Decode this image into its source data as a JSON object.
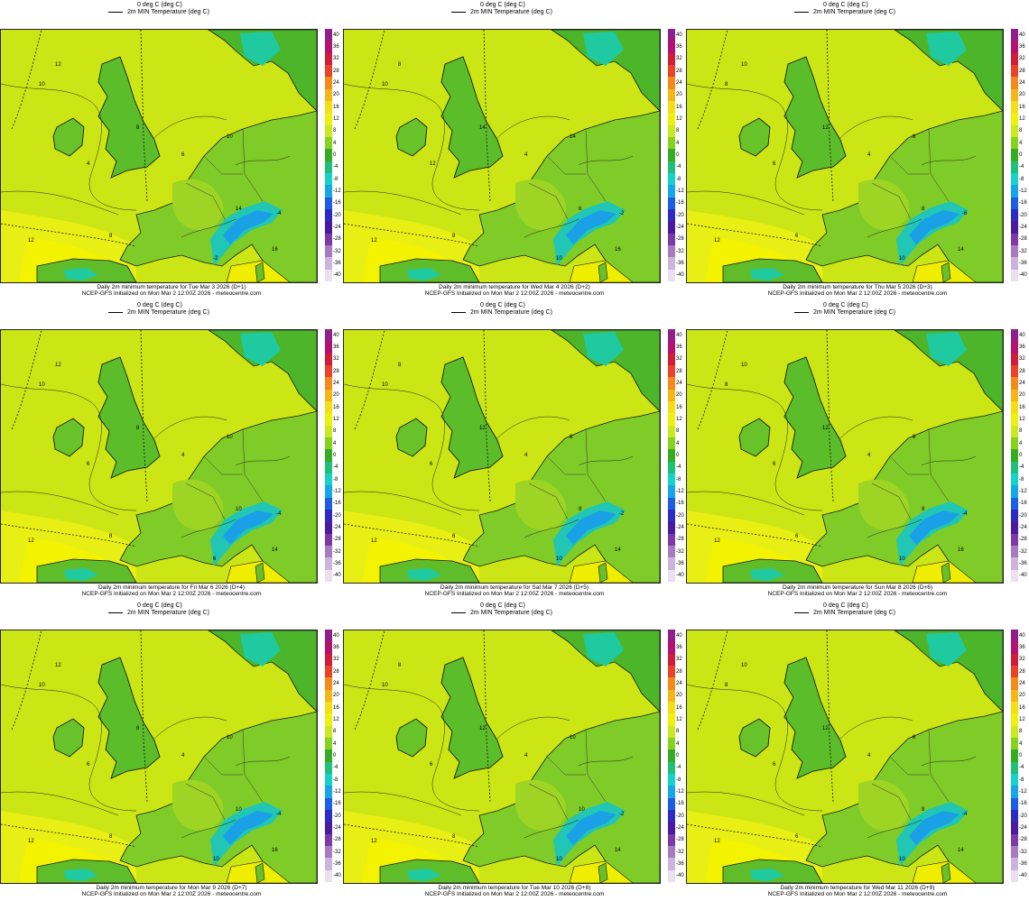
{
  "legend": {
    "contour_label": "0 deg C (deg C)",
    "line_label": "2m MIN Temperature (deg C)"
  },
  "init_line": "NCEP-GFS Initialized on Mon Mar 2 12:00Z 2026 - meteocentre.com",
  "colorbar_ticks": [
    "40",
    "36",
    "32",
    "28",
    "24",
    "20",
    "16",
    "12",
    "8",
    "4",
    "0",
    "-4",
    "-8",
    "-12",
    "-16",
    "-20",
    "-24",
    "-28",
    "-32",
    "-36",
    "-40"
  ],
  "colorbar_colors": [
    "#8f1f8a",
    "#b3126e",
    "#d01d3a",
    "#e9432a",
    "#f58a1c",
    "#f7b617",
    "#f5de16",
    "#eef110",
    "#c9ea20",
    "#86d21c",
    "#36ac22",
    "#20c07a",
    "#16d2c9",
    "#17a7e8",
    "#1d5fe4",
    "#2e2bc4",
    "#4a1a9f",
    "#7d3aa6",
    "#a87ac2",
    "#cdb4dc",
    "#ebe0f0"
  ],
  "panels": [
    {
      "title": "Daily 2m minimum temperature for Tue Mar 3 2026 (D+1)",
      "map_labels": [
        "10",
        "12",
        "8",
        "4",
        "6",
        "14",
        "16",
        "-4",
        "-2",
        "8",
        "12",
        "10"
      ]
    },
    {
      "title": "Daily 2m minimum temperature for Wed Mar 4 2026 (D+2)",
      "map_labels": [
        "10",
        "8",
        "14",
        "12",
        "4",
        "6",
        "16",
        "-2",
        "10",
        "8",
        "12",
        "14"
      ]
    },
    {
      "title": "Daily 2m minimum temperature for Thu Mar 5 2026 (D+3)",
      "map_labels": [
        "8",
        "10",
        "12",
        "6",
        "4",
        "8",
        "14",
        "-6",
        "10",
        "6",
        "12",
        "8"
      ]
    },
    {
      "title": "Daily 2m minimum temperature for Fri Mar 6 2026 (D+4)",
      "map_labels": [
        "10",
        "12",
        "8",
        "6",
        "4",
        "10",
        "14",
        "-4",
        "6",
        "8",
        "12",
        "10"
      ]
    },
    {
      "title": "Daily 2m minimum temperature for Sat Mar 7 2026 (D+5)",
      "map_labels": [
        "10",
        "8",
        "12",
        "6",
        "4",
        "8",
        "14",
        "-2",
        "10",
        "6",
        "12",
        "8"
      ]
    },
    {
      "title": "Daily 2m minimum temperature for Sun Mar 8 2026 (D+6)",
      "map_labels": [
        "8",
        "10",
        "12",
        "6",
        "4",
        "8",
        "16",
        "-4",
        "10",
        "6",
        "12",
        "8"
      ]
    },
    {
      "title": "Daily 2m minimum temperature for Mon Mar 9 2026 (D+7)",
      "map_labels": [
        "10",
        "12",
        "8",
        "6",
        "4",
        "10",
        "16",
        "-4",
        "10",
        "8",
        "12",
        "10"
      ]
    },
    {
      "title": "Daily 2m minimum temperature for Tue Mar 10 2026 (D+8)",
      "map_labels": [
        "10",
        "8",
        "12",
        "6",
        "4",
        "10",
        "14",
        "-2",
        "10",
        "8",
        "12",
        "10"
      ]
    },
    {
      "title": "Daily 2m minimum temperature for Wed Mar 11 2026 (D+9)",
      "map_labels": [
        "8",
        "10",
        "12",
        "6",
        "4",
        "8",
        "14",
        "-4",
        "10",
        "6",
        "12",
        "8"
      ]
    }
  ]
}
